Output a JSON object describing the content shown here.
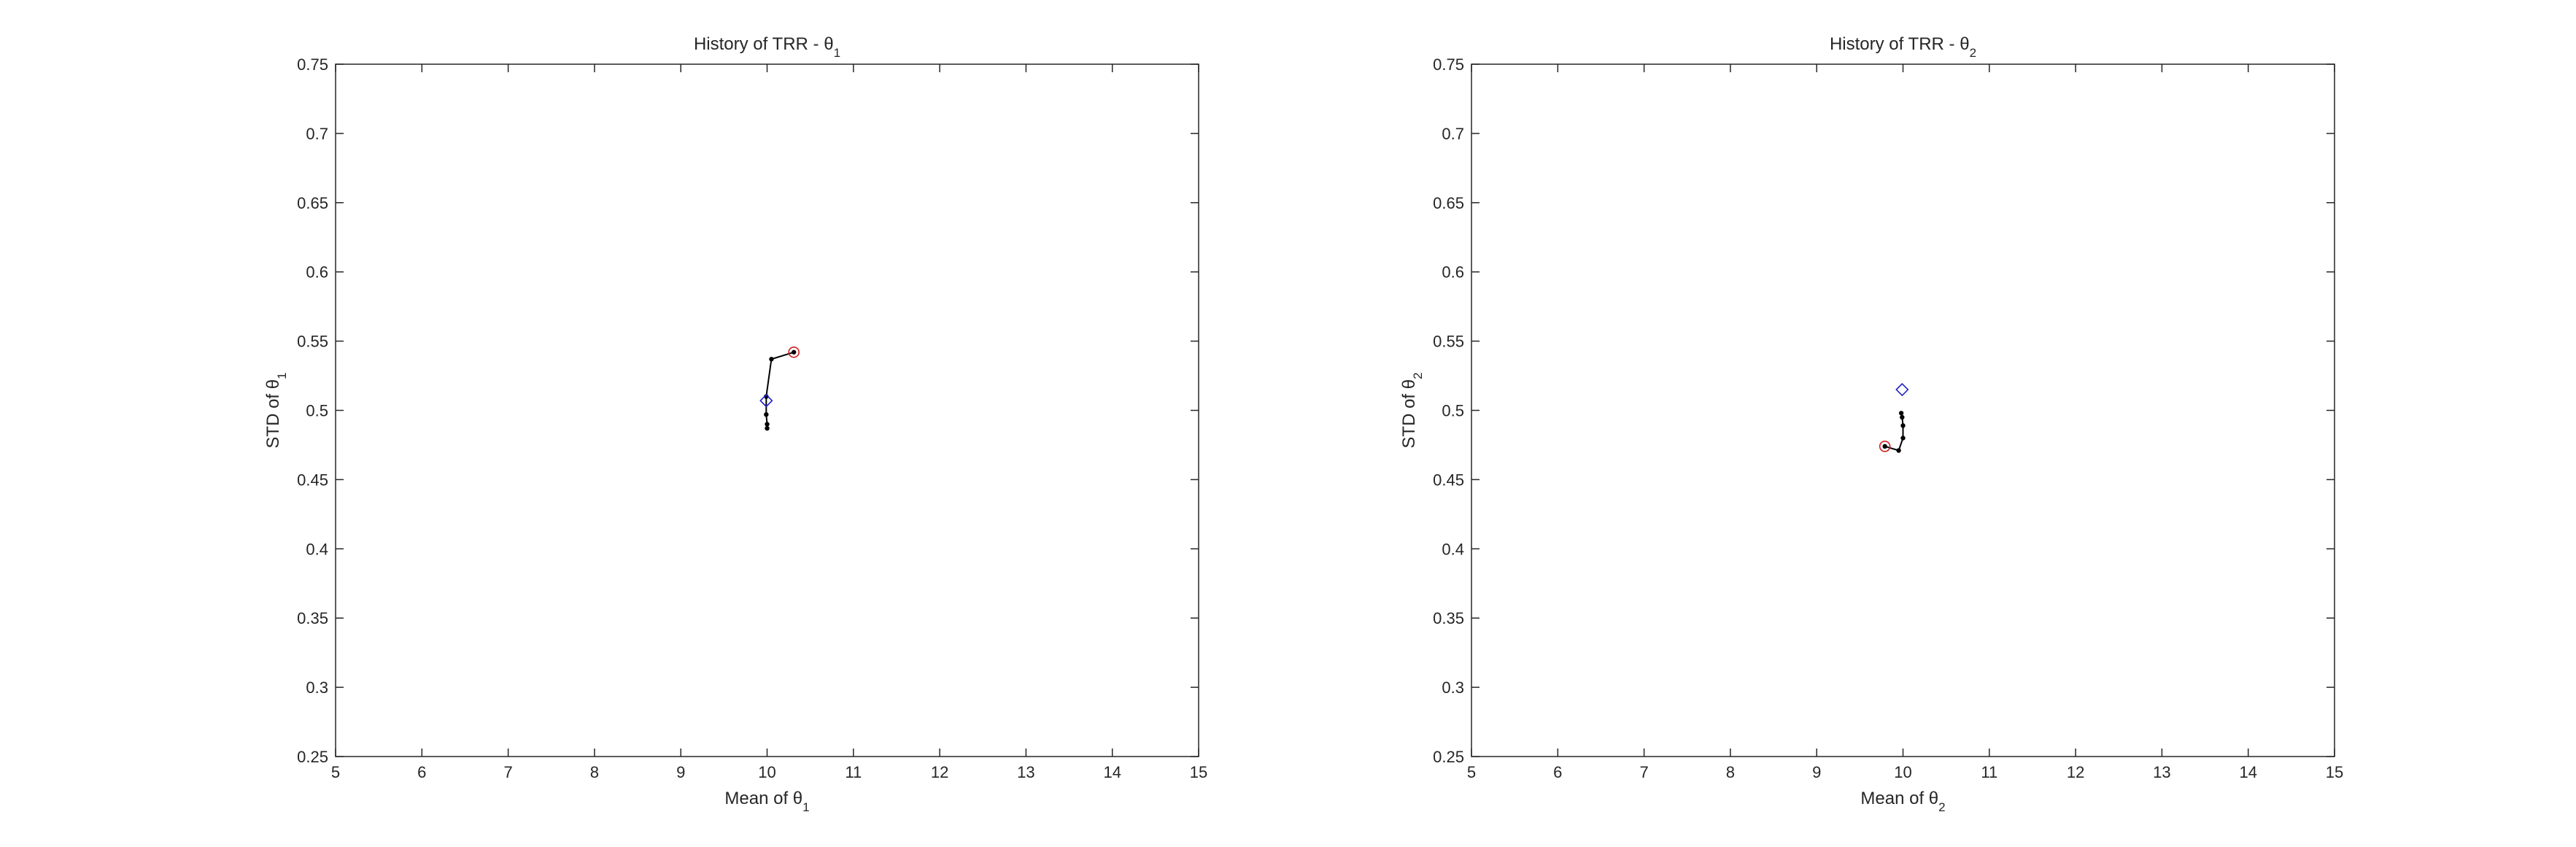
{
  "chart_data": [
    {
      "type": "line",
      "title": "History of TRR - θ",
      "title_subscript": "1",
      "xlabel": "Mean of θ",
      "xlabel_subscript": "1",
      "ylabel": "STD of θ",
      "ylabel_subscript": "1",
      "xlim": [
        5,
        15
      ],
      "ylim": [
        0.25,
        0.75
      ],
      "xticks": [
        5,
        6,
        7,
        8,
        9,
        10,
        11,
        12,
        13,
        14,
        15
      ],
      "yticks": [
        0.25,
        0.3,
        0.35,
        0.4,
        0.45,
        0.5,
        0.55,
        0.6,
        0.65,
        0.7,
        0.75
      ],
      "xtick_labels": [
        "5",
        "6",
        "7",
        "8",
        "9",
        "10",
        "11",
        "12",
        "13",
        "14",
        "15"
      ],
      "ytick_labels": [
        "0.25",
        "0.3",
        "0.35",
        "0.4",
        "0.45",
        "0.5",
        "0.55",
        "0.6",
        "0.65",
        "0.7",
        "0.75"
      ],
      "grid": false,
      "line_color": "#000000",
      "start_marker_color": "#2020c8",
      "end_marker_color": "#d02020",
      "path": [
        {
          "x": 10.0,
          "y": 0.487
        },
        {
          "x": 10.0,
          "y": 0.49
        },
        {
          "x": 9.99,
          "y": 0.497
        },
        {
          "x": 9.99,
          "y": 0.51
        },
        {
          "x": 10.05,
          "y": 0.537
        },
        {
          "x": 10.31,
          "y": 0.542
        }
      ],
      "start": {
        "x": 9.99,
        "y": 0.507
      },
      "end": {
        "x": 10.31,
        "y": 0.542
      }
    },
    {
      "type": "line",
      "title": "History of TRR - θ",
      "title_subscript": "2",
      "xlabel": "Mean of θ",
      "xlabel_subscript": "2",
      "ylabel": "STD of θ",
      "ylabel_subscript": "2",
      "xlim": [
        5,
        15
      ],
      "ylim": [
        0.25,
        0.75
      ],
      "xticks": [
        5,
        6,
        7,
        8,
        9,
        10,
        11,
        12,
        13,
        14,
        15
      ],
      "yticks": [
        0.25,
        0.3,
        0.35,
        0.4,
        0.45,
        0.5,
        0.55,
        0.6,
        0.65,
        0.7,
        0.75
      ],
      "xtick_labels": [
        "5",
        "6",
        "7",
        "8",
        "9",
        "10",
        "11",
        "12",
        "13",
        "14",
        "15"
      ],
      "ytick_labels": [
        "0.25",
        "0.3",
        "0.35",
        "0.4",
        "0.45",
        "0.5",
        "0.55",
        "0.6",
        "0.65",
        "0.7",
        "0.75"
      ],
      "grid": false,
      "line_color": "#000000",
      "start_marker_color": "#2020c8",
      "end_marker_color": "#d02020",
      "path": [
        {
          "x": 9.98,
          "y": 0.498
        },
        {
          "x": 9.99,
          "y": 0.495
        },
        {
          "x": 10.0,
          "y": 0.489
        },
        {
          "x": 10.0,
          "y": 0.48
        },
        {
          "x": 9.95,
          "y": 0.471
        },
        {
          "x": 9.79,
          "y": 0.474
        }
      ],
      "start": {
        "x": 9.99,
        "y": 0.515
      },
      "end": {
        "x": 9.79,
        "y": 0.474
      }
    }
  ]
}
